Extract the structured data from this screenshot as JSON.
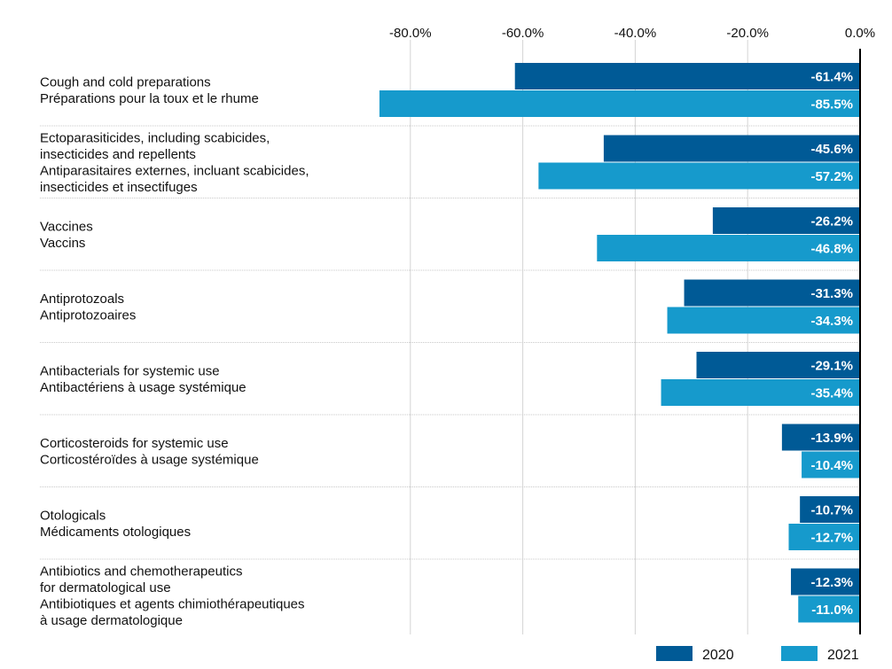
{
  "chart_data": {
    "type": "bar",
    "orientation": "horizontal",
    "title": "",
    "xlabel": "",
    "ylabel": "",
    "xlim": [
      -87.5,
      0
    ],
    "xticks": [
      -80,
      -60,
      -40,
      -20,
      0
    ],
    "xtick_labels": [
      "-80.0%",
      "-60.0%",
      "-40.0%",
      "-20.0%",
      "0.0%"
    ],
    "grid": true,
    "legend_position": "bottom-right",
    "categories": [
      [
        "Cough and cold preparations",
        "Préparations pour la toux et le rhume"
      ],
      [
        "Ectoparasiticides, including scabicides,",
        "insecticides and repellents",
        "Antiparasitaires externes, incluant scabicides,",
        "insecticides et insectifuges"
      ],
      [
        "Vaccines",
        "Vaccins"
      ],
      [
        "Antiprotozoals",
        "Antiprotozoaires"
      ],
      [
        "Antibacterials for systemic use",
        "Antibactériens à usage systémique"
      ],
      [
        "Corticosteroids for systemic use",
        "Corticostéroïdes à usage systémique"
      ],
      [
        "Otologicals",
        "Médicaments otologiques"
      ],
      [
        "Antibiotics and chemotherapeutics",
        "for dermatological use",
        "Antibiotiques et agents chimiothérapeutiques",
        "à usage dermatologique"
      ]
    ],
    "series": [
      {
        "name": "2020",
        "color": "#005A96",
        "values": [
          -61.4,
          -45.6,
          -26.2,
          -31.3,
          -29.1,
          -13.9,
          -10.7,
          -12.3
        ],
        "labels": [
          "-61.4%",
          "-45.6%",
          "-26.2%",
          "-31.3%",
          "-29.1%",
          "-13.9%",
          "-10.7%",
          "-12.3%"
        ]
      },
      {
        "name": "2021",
        "color": "#169ACC",
        "values": [
          -85.5,
          -57.2,
          -46.8,
          -34.3,
          -35.4,
          -10.4,
          -12.7,
          -11.0
        ],
        "labels": [
          "-85.5%",
          "-57.2%",
          "-46.8%",
          "-34.3%",
          "-35.4%",
          "-10.4%",
          "-12.7%",
          "-11.0%"
        ]
      }
    ]
  }
}
